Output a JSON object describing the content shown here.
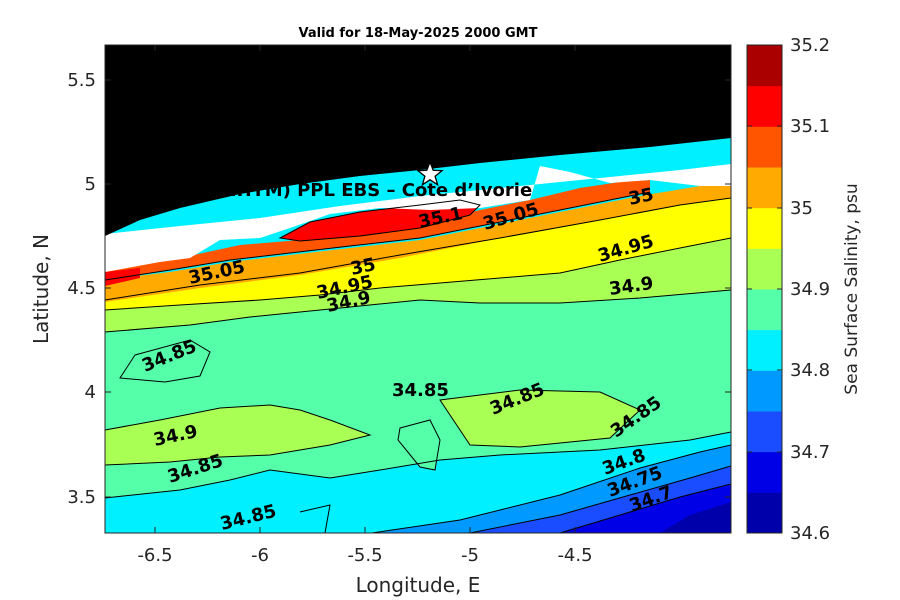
{
  "title": "Valid for 18-May-2025 2000 GMT",
  "x_axis": {
    "label": "Longitude, E",
    "ticks": [
      "-6.5",
      "-6",
      "-5.5",
      "-5",
      "-4.5"
    ]
  },
  "y_axis": {
    "label": "Latitude, N",
    "ticks": [
      "5.5",
      "5",
      "4.5",
      "4",
      "3.5"
    ]
  },
  "colorbar": {
    "label": "Sea Surface Salinity, psu",
    "ticks": [
      "35.2",
      "35.1",
      "35",
      "34.9",
      "34.8",
      "34.7",
      "34.6"
    ],
    "levels": [
      34.6,
      34.65,
      34.7,
      34.75,
      34.8,
      34.85,
      34.9,
      34.95,
      35.0,
      35.05,
      35.1,
      35.15,
      35.2
    ],
    "colors": [
      "#0000aa",
      "#0000e6",
      "#1a4dff",
      "#0099ff",
      "#00f0ff",
      "#55ffaa",
      "#aaff55",
      "#ffff00",
      "#ffaa00",
      "#ff5500",
      "#ff0000",
      "#aa0000"
    ]
  },
  "site": {
    "label": "(ONHYM) PPL EBS  – Cote d’Ivorie",
    "marker": "star-icon"
  },
  "contour_labels": [
    "35.1",
    "35.05",
    "35",
    "35.05",
    "35",
    "34.95",
    "34.95",
    "34.9",
    "34.9",
    "34.85",
    "34.85",
    "34.85",
    "34.85",
    "34.9",
    "34.85",
    "34.8",
    "34.75",
    "34.7",
    "34.85"
  ],
  "land_color": "#000000"
}
